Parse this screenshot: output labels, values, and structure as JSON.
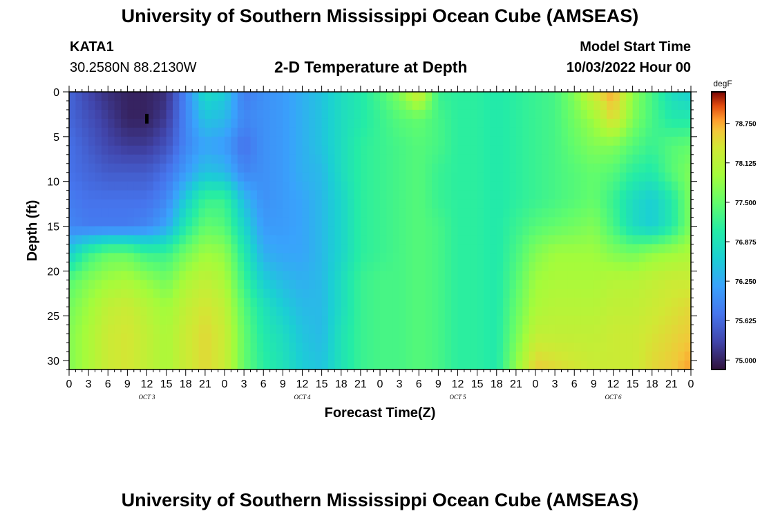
{
  "header": {
    "title": "University of Southern Mississippi Ocean Cube (AMSEAS)",
    "station": "KATA1",
    "coordinates": "30.2580N  88.2130W",
    "plot_title": "2-D Temperature at Depth",
    "model_start_label": "Model Start Time",
    "model_start_value": "10/03/2022 Hour 00"
  },
  "footer": {
    "title": "University of Southern Mississippi Ocean Cube (AMSEAS)"
  },
  "chart_data": {
    "type": "heatmap",
    "title": "2-D Temperature at Depth",
    "xlabel": "Forecast Time(Z)",
    "ylabel": "Depth (ft)",
    "units": "degF",
    "x_range_hours": [
      0,
      96
    ],
    "y_range_ft": [
      0,
      31
    ],
    "x_tick_labels": [
      "0",
      "3",
      "6",
      "9",
      "12",
      "15",
      "18",
      "21",
      "0",
      "3",
      "6",
      "9",
      "12",
      "15",
      "18",
      "21",
      "0",
      "3",
      "6",
      "9",
      "12",
      "15",
      "18",
      "21",
      "0",
      "3",
      "6",
      "9",
      "12",
      "15",
      "18",
      "21",
      "0"
    ],
    "y_ticks": [
      0,
      5,
      10,
      15,
      20,
      25,
      30
    ],
    "day_labels": [
      "OCT 3",
      "OCT 4",
      "OCT 5",
      "OCT 6"
    ],
    "colorbar": {
      "label": "degF",
      "min": 74.85,
      "max": 79.25,
      "ticks": [
        "75.000",
        "75.625",
        "76.250",
        "76.875",
        "77.500",
        "78.125",
        "78.750"
      ]
    },
    "marker": {
      "hour": 12,
      "depth_ft": 3
    },
    "depths_ft": [
      0,
      3,
      6,
      9,
      12,
      15,
      18,
      21,
      24,
      27,
      31
    ],
    "hours": [
      0,
      3,
      6,
      9,
      12,
      15,
      18,
      21,
      24,
      27,
      30,
      33,
      36,
      39,
      42,
      45,
      48,
      51,
      54,
      57,
      60,
      63,
      66,
      69,
      72,
      75,
      78,
      81,
      84,
      87,
      90,
      93,
      96
    ],
    "values_degF": [
      [
        75.6,
        75.3,
        75.1,
        75.0,
        75.0,
        75.1,
        75.9,
        76.8,
        76.6,
        75.8,
        76.0,
        76.1,
        76.3,
        76.5,
        76.8,
        77.0,
        77.3,
        77.7,
        78.4,
        77.2,
        77.1,
        77.1,
        77.0,
        77.1,
        77.2,
        77.3,
        77.7,
        78.4,
        78.8,
        77.8,
        77.3,
        76.8,
        76.6
      ],
      [
        75.6,
        75.4,
        75.2,
        75.0,
        75.0,
        75.2,
        75.9,
        76.5,
        76.4,
        75.9,
        76.0,
        76.1,
        76.3,
        76.5,
        76.8,
        77.0,
        77.2,
        77.4,
        77.5,
        77.3,
        77.1,
        77.1,
        77.0,
        77.1,
        77.2,
        77.3,
        77.6,
        77.9,
        78.5,
        77.7,
        77.3,
        77.0,
        77.0
      ],
      [
        75.7,
        75.5,
        75.3,
        75.2,
        75.2,
        75.4,
        75.9,
        76.2,
        76.1,
        75.7,
        76.0,
        76.1,
        76.3,
        76.5,
        76.8,
        77.1,
        77.2,
        77.3,
        77.4,
        77.3,
        77.1,
        77.1,
        77.0,
        77.1,
        77.2,
        77.3,
        77.5,
        77.7,
        77.7,
        77.4,
        77.2,
        77.4,
        77.5
      ],
      [
        75.7,
        75.6,
        75.5,
        75.5,
        75.5,
        75.7,
        76.1,
        76.5,
        76.4,
        75.9,
        76.0,
        76.1,
        76.3,
        76.4,
        76.8,
        77.1,
        77.2,
        77.3,
        77.4,
        77.2,
        77.1,
        77.1,
        77.0,
        77.1,
        77.2,
        77.3,
        77.4,
        77.5,
        77.4,
        77.1,
        77.0,
        77.4,
        77.7
      ],
      [
        75.8,
        75.7,
        75.7,
        75.7,
        75.7,
        75.9,
        76.6,
        77.2,
        77.2,
        76.4,
        76.0,
        76.1,
        76.2,
        76.4,
        76.7,
        77.1,
        77.2,
        77.3,
        77.4,
        77.2,
        77.1,
        77.1,
        77.0,
        77.1,
        77.2,
        77.3,
        77.4,
        77.5,
        77.2,
        76.8,
        76.6,
        77.0,
        77.7
      ],
      [
        75.9,
        75.8,
        75.8,
        75.8,
        75.9,
        76.2,
        77.0,
        77.5,
        77.4,
        76.7,
        76.1,
        76.1,
        76.2,
        76.4,
        76.7,
        77.1,
        77.2,
        77.3,
        77.4,
        77.3,
        77.1,
        77.1,
        77.0,
        77.2,
        77.4,
        77.5,
        77.6,
        77.7,
        77.3,
        76.8,
        76.6,
        77.0,
        77.7
      ],
      [
        76.6,
        77.2,
        77.5,
        77.5,
        77.2,
        77.2,
        77.6,
        77.9,
        77.8,
        77.0,
        76.3,
        76.2,
        76.2,
        76.4,
        76.7,
        77.1,
        77.2,
        77.3,
        77.4,
        77.3,
        77.1,
        77.1,
        77.0,
        77.3,
        77.7,
        77.9,
        77.9,
        77.9,
        77.7,
        77.6,
        77.8,
        77.9,
        78.0
      ],
      [
        77.4,
        77.7,
        77.9,
        78.0,
        77.8,
        77.6,
        78.0,
        78.2,
        78.0,
        77.2,
        76.6,
        76.4,
        76.3,
        76.4,
        76.8,
        77.2,
        77.3,
        77.3,
        77.4,
        77.3,
        77.1,
        77.1,
        77.0,
        77.4,
        77.9,
        78.0,
        78.0,
        78.0,
        78.1,
        78.1,
        78.2,
        78.3,
        78.3
      ],
      [
        77.6,
        77.9,
        78.2,
        78.3,
        78.1,
        77.9,
        78.2,
        78.4,
        78.2,
        77.4,
        76.9,
        76.6,
        76.4,
        76.4,
        76.8,
        77.2,
        77.3,
        77.3,
        77.4,
        77.3,
        77.1,
        77.1,
        77.0,
        77.5,
        78.0,
        78.1,
        78.1,
        78.1,
        78.2,
        78.2,
        78.3,
        78.4,
        78.5
      ],
      [
        77.7,
        78.0,
        78.3,
        78.4,
        78.2,
        78.0,
        78.3,
        78.5,
        78.3,
        77.5,
        77.0,
        76.8,
        76.5,
        76.4,
        76.9,
        77.2,
        77.3,
        77.3,
        77.4,
        77.3,
        77.1,
        77.1,
        77.0,
        77.6,
        78.2,
        78.2,
        78.2,
        78.2,
        78.3,
        78.3,
        78.4,
        78.5,
        78.6
      ],
      [
        77.7,
        78.0,
        78.3,
        78.4,
        78.2,
        78.0,
        78.3,
        78.5,
        78.3,
        77.5,
        77.1,
        76.9,
        76.6,
        76.5,
        76.9,
        77.2,
        77.3,
        77.3,
        77.4,
        77.3,
        77.1,
        77.1,
        77.0,
        77.8,
        78.6,
        78.5,
        78.4,
        78.3,
        78.3,
        78.3,
        78.5,
        78.6,
        78.8
      ]
    ]
  }
}
